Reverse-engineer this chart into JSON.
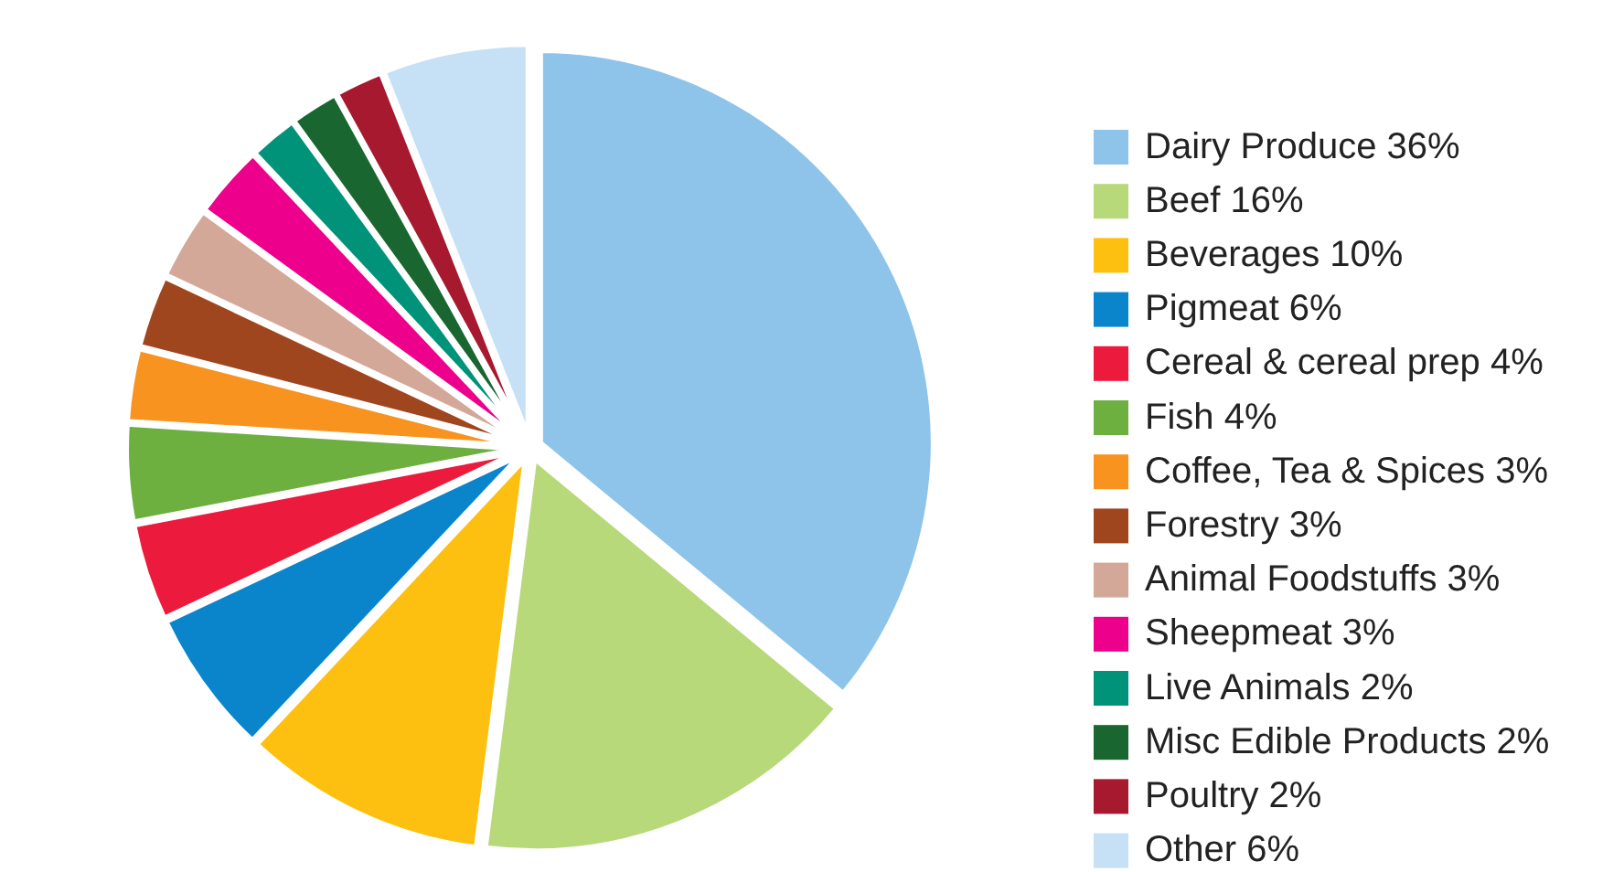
{
  "chart_data": {
    "type": "pie",
    "categories": [
      "Dairy Produce",
      "Beef",
      "Beverages",
      "Pigmeat",
      "Cereal & cereal prep",
      "Fish",
      "Coffee, Tea & Spices",
      "Forestry",
      "Animal Foodstuffs",
      "Sheepmeat",
      "Live Animals",
      "Misc Edible Products",
      "Poultry",
      "Other"
    ],
    "values": [
      36,
      16,
      10,
      6,
      4,
      4,
      3,
      3,
      3,
      3,
      2,
      2,
      2,
      6
    ],
    "value_labels": [
      "36%",
      "16%",
      "10%",
      "6%",
      "4%",
      "4%",
      "3%",
      "3%",
      "3%",
      "3%",
      "2%",
      "2%",
      "2%",
      "6%"
    ],
    "colors": [
      "#8ec4ea",
      "#b8d97a",
      "#fdc010",
      "#0a85cc",
      "#ec1a3c",
      "#6db040",
      "#f7931e",
      "#a0461f",
      "#d4a898",
      "#ec008c",
      "#00937a",
      "#1a6631",
      "#a6192e",
      "#c6e0f5"
    ],
    "legend": "right"
  }
}
